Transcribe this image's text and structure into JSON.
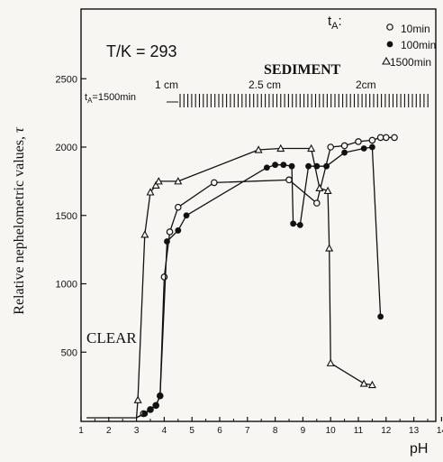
{
  "chart_data": {
    "type": "scatter",
    "title": "",
    "annotation_condition": "T/K = 293",
    "xlabel": "pH",
    "ylabel": "Relative nephelometric values,",
    "ylabel_symbol": "τ",
    "xlim": [
      1,
      14
    ],
    "ylim": [
      0,
      2700
    ],
    "x_ticks": [
      1,
      2,
      3,
      4,
      5,
      6,
      7,
      8,
      9,
      10,
      11,
      12,
      13,
      14
    ],
    "y_ticks": [
      500,
      1000,
      1500,
      2000,
      2500
    ],
    "grid": false,
    "legend": {
      "title": "t",
      "title_sub": "A",
      "title_suffix": ":",
      "placement": "top-right",
      "entries": [
        "10min",
        "100min",
        "1500min"
      ]
    },
    "region_labels": {
      "sediment": "SEDIMENT",
      "clear": "CLEAR"
    },
    "sediment_scale": {
      "prefix": "t",
      "prefix_sub": "A",
      "prefix_suffix": "=1500min",
      "heights": [
        "1 cm",
        "2.5 cm",
        "2cm"
      ]
    },
    "series": [
      {
        "name": "10min",
        "marker": "open-circle",
        "points": [
          [
            3.25,
            50
          ],
          [
            3.5,
            80
          ],
          [
            3.7,
            110
          ],
          [
            3.85,
            180
          ],
          [
            4.0,
            1050
          ],
          [
            4.2,
            1380
          ],
          [
            4.5,
            1560
          ],
          [
            5.8,
            1740
          ],
          [
            8.5,
            1760
          ],
          [
            9.5,
            1590
          ],
          [
            10.0,
            2000
          ],
          [
            10.5,
            2010
          ],
          [
            11.0,
            2040
          ],
          [
            11.5,
            2050
          ],
          [
            11.8,
            2070
          ],
          [
            12.0,
            2070
          ],
          [
            12.3,
            2070
          ]
        ]
      },
      {
        "name": "100min",
        "marker": "filled-circle",
        "points": [
          [
            3.3,
            50
          ],
          [
            3.5,
            80
          ],
          [
            3.7,
            110
          ],
          [
            3.85,
            180
          ],
          [
            4.1,
            1310
          ],
          [
            4.5,
            1390
          ],
          [
            4.8,
            1500
          ],
          [
            7.7,
            1850
          ],
          [
            8.0,
            1870
          ],
          [
            8.3,
            1870
          ],
          [
            8.6,
            1860
          ],
          [
            8.65,
            1440
          ],
          [
            8.9,
            1430
          ],
          [
            9.2,
            1860
          ],
          [
            9.5,
            1860
          ],
          [
            9.85,
            1860
          ],
          [
            10.5,
            1960
          ],
          [
            11.2,
            1990
          ],
          [
            11.5,
            2000
          ],
          [
            11.8,
            760
          ]
        ]
      },
      {
        "name": "1500min",
        "marker": "open-triangle",
        "points": [
          [
            3.05,
            150
          ],
          [
            3.3,
            1360
          ],
          [
            3.5,
            1670
          ],
          [
            3.7,
            1720
          ],
          [
            3.8,
            1750
          ],
          [
            4.5,
            1750
          ],
          [
            7.4,
            1980
          ],
          [
            8.2,
            1990
          ],
          [
            9.3,
            1990
          ],
          [
            9.6,
            1700
          ],
          [
            9.9,
            1680
          ],
          [
            9.95,
            1260
          ],
          [
            10.0,
            420
          ],
          [
            11.2,
            270
          ],
          [
            11.5,
            260
          ]
        ]
      }
    ]
  }
}
